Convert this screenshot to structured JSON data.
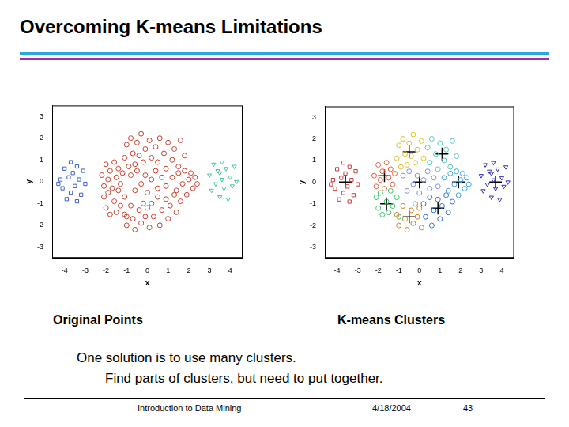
{
  "slide": {
    "title": "Overcoming K-means Limitations",
    "text": [
      "One solution is to use many clusters.",
      "Find parts of clusters, but need to put together."
    ],
    "footer": [
      "Introduction to Data Mining",
      "4/18/2004",
      "43"
    ]
  },
  "chart_data": [
    {
      "type": "scatter",
      "title": "Original Points",
      "xlabel": "x",
      "ylabel": "y",
      "xlim": [
        -4.6,
        4.6
      ],
      "ylim": [
        -3.5,
        3.5
      ],
      "xticks": [
        -4,
        -3,
        -2,
        -1,
        0,
        1,
        2,
        3,
        4
      ],
      "yticks": [
        -3,
        -2,
        -1,
        0,
        1,
        2,
        3
      ],
      "grid": false,
      "series": [
        {
          "color": "#3a5fcd",
          "marker": "square",
          "x": [
            -4.2,
            -4.1,
            -4.0,
            -3.9,
            -3.8,
            -3.7,
            -3.7,
            -3.6,
            -3.5,
            -3.4,
            -3.4,
            -3.3,
            -3.2,
            -3.1,
            -3.0,
            -4.3
          ],
          "y": [
            0.1,
            -0.3,
            0.6,
            -0.8,
            0.2,
            0.9,
            -0.5,
            0.4,
            -0.2,
            0.7,
            -0.9,
            0.1,
            -0.6,
            0.5,
            -0.1,
            -0.1
          ]
        },
        {
          "color": "#c8402a",
          "marker": "circle",
          "x": [
            -2.2,
            -2.1,
            -2.0,
            -1.9,
            -1.8,
            -1.7,
            -1.6,
            -1.5,
            -1.4,
            -1.3,
            -1.2,
            -1.1,
            -1.0,
            -0.9,
            -0.8,
            -0.7,
            -0.6,
            -0.5,
            -0.4,
            -0.3,
            -0.2,
            -0.1,
            0.1,
            0.2,
            0.4,
            0.5,
            0.6,
            0.8,
            0.9,
            1.0,
            1.2,
            1.3,
            1.5,
            1.6,
            1.8,
            1.2,
            1.4,
            1.5,
            1.7,
            1.8,
            1.9,
            2.0,
            2.1,
            2.2,
            2.3,
            2.4,
            0.2,
            0.3,
            0.5,
            0.6,
            0.7,
            0.9,
            1.0,
            1.1,
            1.3,
            1.4,
            1.6,
            -1.1,
            -1.0,
            -0.8,
            -0.7,
            -0.6,
            -0.4,
            -0.3,
            -0.2,
            -0.1,
            0.1,
            0.0,
            -2.1,
            -2.0,
            -1.9,
            -1.8,
            -1.6,
            -1.5,
            -1.4,
            -1.3,
            -1.1,
            -1.0,
            -0.8,
            -0.6,
            -0.5,
            -0.3,
            -0.1,
            0.0,
            0.2,
            0.4,
            0.5,
            0.7,
            0.9
          ],
          "y": [
            0.3,
            -0.2,
            0.8,
            0.1,
            0.5,
            -0.3,
            0.9,
            0.2,
            0.6,
            -0.1,
            0.4,
            1.1,
            1.7,
            0.7,
            2.0,
            1.3,
            0.8,
            1.8,
            1.2,
            2.2,
            0.9,
            1.5,
            1.9,
            1.1,
            1.6,
            0.9,
            2.0,
            1.3,
            0.6,
            1.8,
            1.0,
            1.5,
            0.7,
            1.9,
            1.2,
            0.2,
            -0.4,
            0.4,
            -0.1,
            0.5,
            -0.6,
            0.1,
            0.4,
            -0.3,
            0.2,
            -0.1,
            -1.0,
            -1.6,
            -0.7,
            -2.0,
            -1.3,
            -0.8,
            -1.7,
            -1.1,
            -0.6,
            -1.4,
            -0.9,
            -1.5,
            -2.0,
            -1.1,
            -1.7,
            -2.2,
            -1.3,
            -1.9,
            -1.0,
            -1.6,
            -2.1,
            -1.2,
            -0.7,
            -1.2,
            -0.5,
            -1.5,
            -0.9,
            -1.4,
            -0.4,
            -1.1,
            -0.7,
            -1.6,
            0.3,
            -0.4,
            0.5,
            -0.1,
            0.3,
            -0.5,
            0.1,
            0.5,
            -0.3,
            0.2,
            -0.2
          ]
        },
        {
          "color": "#3cc8a0",
          "marker": "triangle_down",
          "x": [
            3.0,
            3.1,
            3.2,
            3.3,
            3.4,
            3.5,
            3.6,
            3.6,
            3.7,
            3.8,
            3.9,
            4.0,
            4.1,
            4.2,
            4.3,
            3.5
          ],
          "y": [
            0.3,
            -0.4,
            0.8,
            -0.1,
            0.5,
            -0.7,
            0.1,
            0.9,
            -0.3,
            0.6,
            -0.8,
            0.2,
            -0.2,
            0.7,
            0.0,
            0.4
          ]
        }
      ]
    },
    {
      "type": "scatter",
      "title": "K-means Clusters",
      "xlabel": "x",
      "ylabel": "y",
      "xlim": [
        -4.6,
        4.6
      ],
      "ylim": [
        -3.5,
        3.5
      ],
      "xticks": [
        -4,
        -3,
        -2,
        -1,
        0,
        1,
        2,
        3,
        4
      ],
      "yticks": [
        -3,
        -2,
        -1,
        0,
        1,
        2,
        3
      ],
      "grid": false,
      "series": [
        {
          "color": "#c83c3c",
          "marker": "square",
          "x": [
            -4.2,
            -4.1,
            -4.0,
            -3.9,
            -3.8,
            -3.7,
            -3.7,
            -3.6,
            -3.5,
            -3.4,
            -3.4,
            -3.3,
            -3.2,
            -3.1,
            -3.0,
            -4.3
          ],
          "y": [
            0.1,
            -0.3,
            0.6,
            -0.8,
            0.2,
            0.9,
            -0.5,
            0.4,
            -0.2,
            0.7,
            -0.9,
            0.1,
            -0.6,
            0.5,
            -0.1,
            -0.1
          ]
        },
        {
          "color": "#e06040",
          "marker": "circle",
          "x": [
            -2.2,
            -2.1,
            -2.0,
            -1.9,
            -1.8,
            -1.7,
            -1.6,
            -1.5,
            -1.4,
            -1.3,
            -1.2
          ],
          "y": [
            0.3,
            -0.2,
            0.8,
            0.1,
            0.5,
            -0.3,
            0.9,
            0.2,
            0.6,
            -0.1,
            0.4
          ]
        },
        {
          "color": "#e0c030",
          "marker": "circle",
          "x": [
            -1.1,
            -1.0,
            -0.9,
            -0.8,
            -0.7,
            -0.6,
            -0.5,
            -0.4,
            -0.3,
            -0.2,
            -0.1,
            0.1,
            0.2
          ],
          "y": [
            1.1,
            1.7,
            0.7,
            2.0,
            1.3,
            0.8,
            1.8,
            1.2,
            2.2,
            0.9,
            1.5,
            1.9,
            1.1
          ]
        },
        {
          "color": "#50c8c0",
          "marker": "circle",
          "x": [
            0.4,
            0.5,
            0.6,
            0.8,
            0.9,
            1.0,
            1.2,
            1.3,
            1.5,
            1.6,
            1.8
          ],
          "y": [
            1.6,
            0.9,
            2.0,
            1.3,
            0.6,
            1.8,
            1.0,
            1.5,
            0.7,
            1.9,
            1.2
          ]
        },
        {
          "color": "#40a0e0",
          "marker": "circle",
          "x": [
            1.2,
            1.4,
            1.5,
            1.7,
            1.8,
            1.9,
            2.0,
            2.1,
            2.2,
            2.3,
            2.4
          ],
          "y": [
            0.2,
            -0.4,
            0.4,
            -0.1,
            0.5,
            -0.6,
            0.1,
            0.4,
            -0.3,
            0.2,
            -0.1
          ]
        },
        {
          "color": "#3070d0",
          "marker": "circle",
          "x": [
            0.2,
            0.3,
            0.5,
            0.6,
            0.7,
            0.9,
            1.0,
            1.1,
            1.3,
            1.4,
            1.6
          ],
          "y": [
            -1.0,
            -1.6,
            -0.7,
            -2.0,
            -1.3,
            -0.8,
            -1.7,
            -1.1,
            -0.6,
            -1.4,
            -0.9
          ]
        },
        {
          "color": "#d08020",
          "marker": "circle",
          "x": [
            -1.1,
            -1.0,
            -0.8,
            -0.7,
            -0.6,
            -0.4,
            -0.3,
            -0.2,
            -0.1,
            0.1,
            0.0
          ],
          "y": [
            -1.5,
            -2.0,
            -1.1,
            -1.7,
            -2.2,
            -1.3,
            -1.9,
            -1.0,
            -1.6,
            -2.1,
            -1.2
          ]
        },
        {
          "color": "#40c070",
          "marker": "circle",
          "x": [
            -2.1,
            -2.0,
            -1.9,
            -1.8,
            -1.6,
            -1.5,
            -1.4,
            -1.3,
            -1.1,
            -1.0
          ],
          "y": [
            -0.7,
            -1.2,
            -0.5,
            -1.5,
            -0.9,
            -1.4,
            -0.4,
            -1.1,
            -0.7,
            -1.6
          ]
        },
        {
          "color": "#8090e0",
          "marker": "circle",
          "x": [
            -0.8,
            -0.6,
            -0.5,
            -0.3,
            -0.1,
            0.0,
            0.2,
            0.4,
            0.5,
            0.7,
            0.9
          ],
          "y": [
            0.3,
            -0.4,
            0.5,
            -0.1,
            0.3,
            -0.5,
            0.1,
            0.5,
            -0.3,
            0.2,
            -0.2
          ]
        },
        {
          "color": "#3030b0",
          "marker": "triangle_down",
          "x": [
            3.0,
            3.1,
            3.2,
            3.3,
            3.4,
            3.5,
            3.6,
            3.6,
            3.7,
            3.8,
            3.9,
            4.0,
            4.1,
            4.2,
            4.3,
            3.5
          ],
          "y": [
            0.3,
            -0.4,
            0.8,
            -0.1,
            0.5,
            -0.7,
            0.1,
            0.9,
            -0.3,
            0.6,
            -0.8,
            0.2,
            -0.2,
            0.7,
            0.0,
            0.4
          ]
        },
        {
          "color": "#000000",
          "marker": "plus",
          "x": [
            -3.6,
            -1.7,
            -0.5,
            1.1,
            1.9,
            0.9,
            -0.5,
            -1.6,
            0.0,
            3.7
          ],
          "y": [
            0.0,
            0.3,
            1.4,
            1.3,
            0.0,
            -1.2,
            -1.6,
            -1.0,
            0.0,
            0.0
          ]
        }
      ]
    }
  ]
}
